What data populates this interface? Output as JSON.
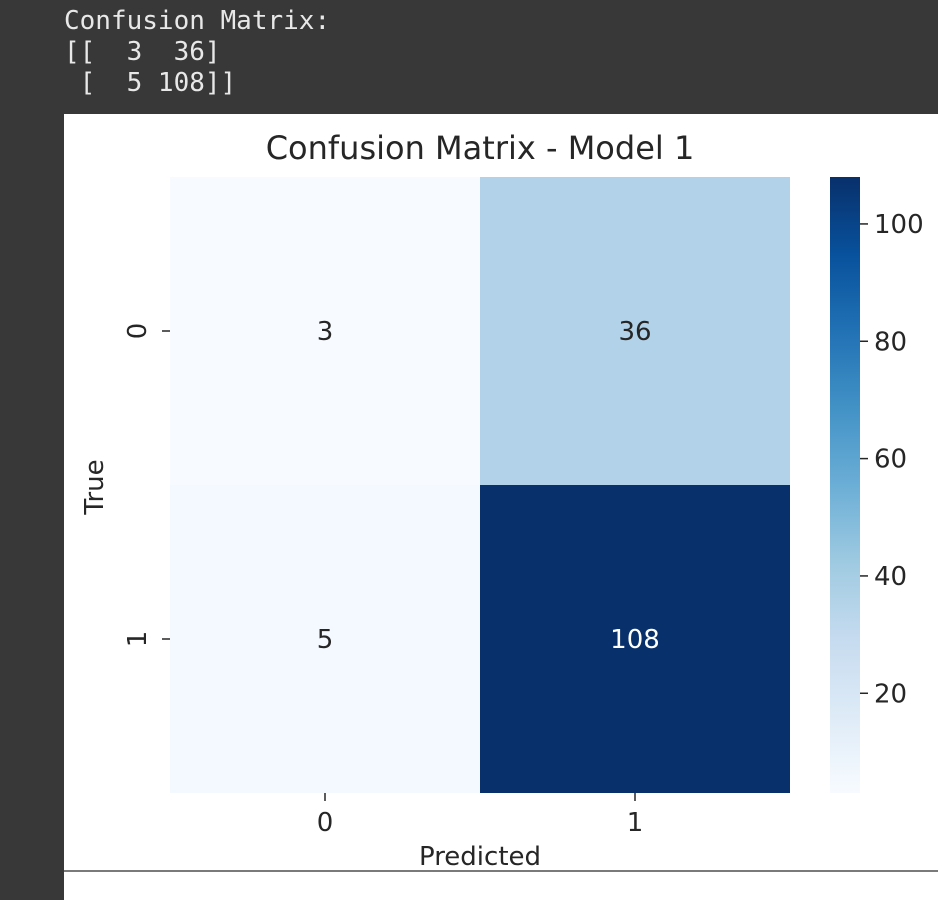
{
  "output_text": {
    "lines": [
      "Confusion Matrix:",
      "[[  3  36]",
      " [  5 108]]"
    ]
  },
  "colors": {
    "cmap": "Blues",
    "low": "#f7fbff",
    "high": "#08306b",
    "text_on_light": "#262626",
    "text_on_dark": "#ffffff"
  },
  "chart_data": {
    "type": "heatmap",
    "title": "Confusion Matrix - Model 1",
    "xlabel": "Predicted",
    "ylabel": "True",
    "x_categories": [
      "0",
      "1"
    ],
    "y_categories": [
      "0",
      "1"
    ],
    "values": [
      [
        3,
        36
      ],
      [
        5,
        108
      ]
    ],
    "annotations": [
      [
        "3",
        "36"
      ],
      [
        "5",
        "108"
      ]
    ],
    "colorbar": {
      "vmin": 3,
      "vmax": 108,
      "ticks": [
        20,
        40,
        60,
        80,
        100
      ],
      "tick_labels": [
        "20",
        "40",
        "60",
        "80",
        "100"
      ]
    },
    "grid": false,
    "legend": "colorbar-right"
  }
}
